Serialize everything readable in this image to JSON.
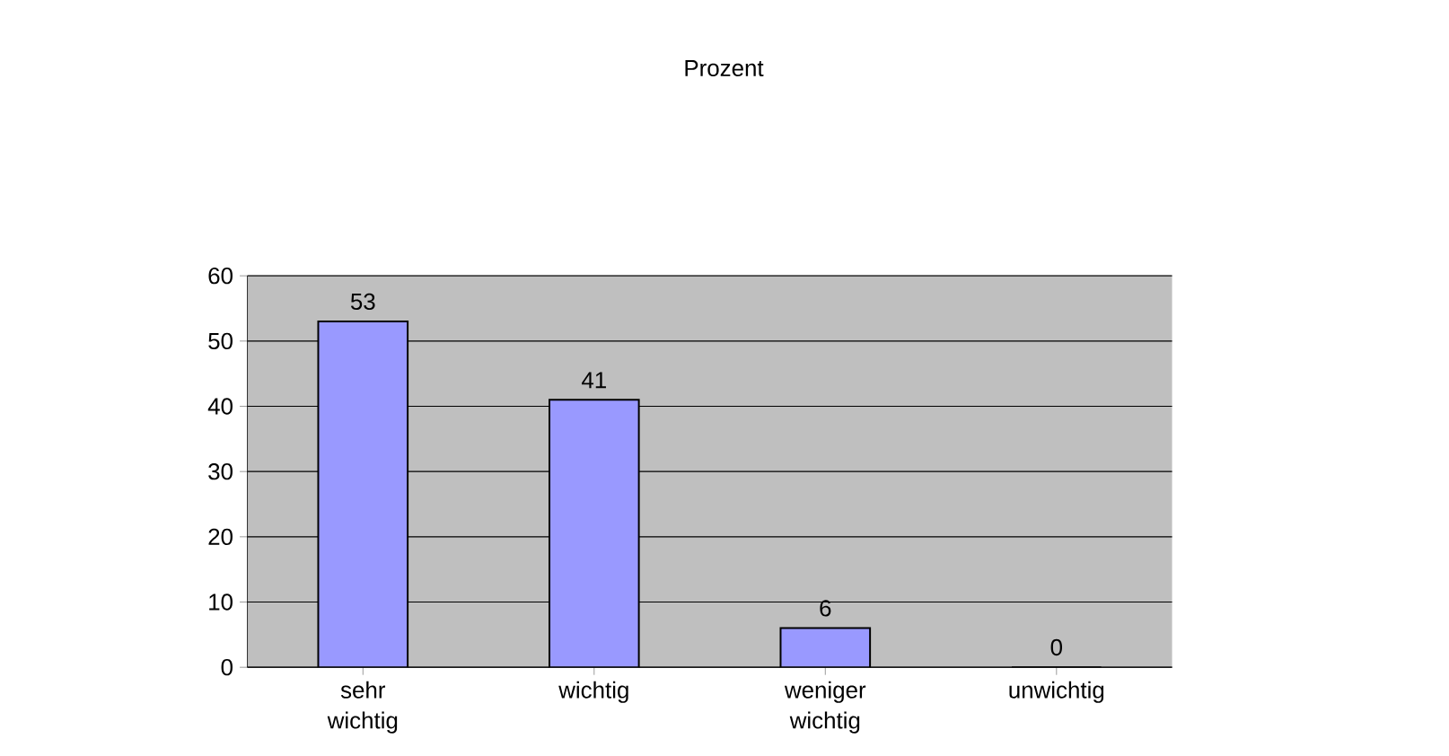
{
  "chart_data": {
    "type": "bar",
    "title": "Prozent",
    "categories": [
      "sehr wichtig",
      "wichtig",
      "weniger wichtig",
      "unwichtig"
    ],
    "values": [
      53,
      41,
      6,
      0
    ],
    "color": "#9999ff",
    "ylim": [
      0,
      60
    ],
    "yticks": [
      0,
      10,
      20,
      30,
      40,
      50,
      60
    ],
    "grid": "y",
    "data_labels": true
  }
}
